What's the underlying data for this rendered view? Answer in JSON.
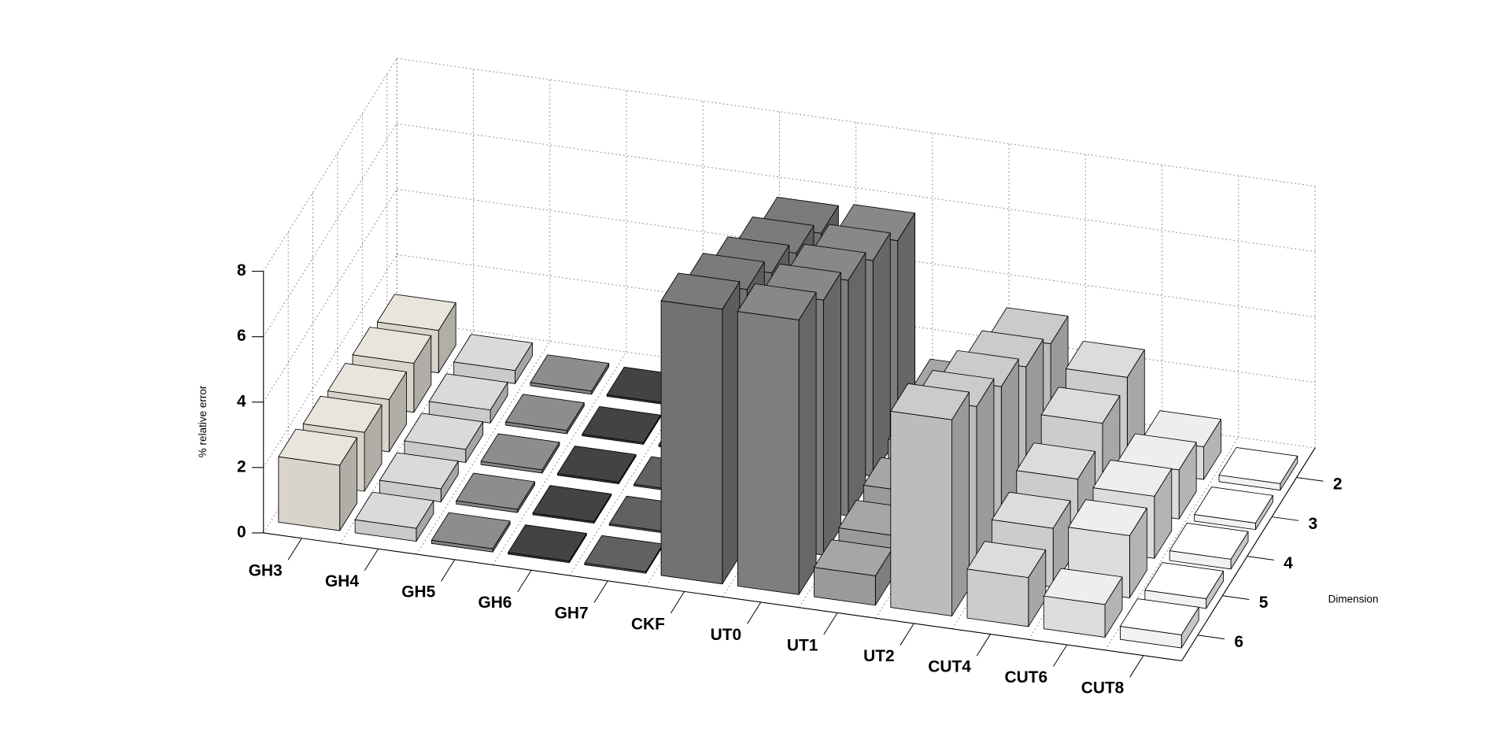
{
  "chart_data": {
    "type": "bar3d",
    "zlabel": "% relative error",
    "ylabel": "Dimension",
    "categories": [
      "GH3",
      "GH4",
      "GH5",
      "GH6",
      "GH7",
      "CKF",
      "UT0",
      "UT1",
      "UT2",
      "CUT4",
      "CUT6",
      "CUT8"
    ],
    "colors": [
      "#d8d4cc",
      "#cacaca",
      "#838383",
      "#3e3e3e",
      "#5a5a5a",
      "#727272",
      "#7e7e7e",
      "#9a9a9a",
      "#bcbcbc",
      "#cccccc",
      "#dcdcdc",
      "#f2f2f2"
    ],
    "series": [
      {
        "name": "2",
        "values": [
          1.3,
          0.4,
          0.1,
          0.05,
          0.05,
          5.9,
          6.0,
          1.6,
          3.5,
          2.8,
          1.0,
          0.2
        ]
      },
      {
        "name": "3",
        "values": [
          1.5,
          0.4,
          0.1,
          0.05,
          0.05,
          6.5,
          6.6,
          1.2,
          4.0,
          2.6,
          1.5,
          0.2
        ]
      },
      {
        "name": "4",
        "values": [
          1.6,
          0.4,
          0.1,
          0.05,
          0.05,
          7.1,
          7.2,
          1.0,
          4.6,
          2.1,
          1.9,
          0.3
        ]
      },
      {
        "name": "5",
        "values": [
          1.8,
          0.4,
          0.1,
          0.05,
          0.05,
          7.8,
          7.8,
          0.9,
          5.2,
          1.8,
          1.9,
          0.3
        ]
      },
      {
        "name": "6",
        "values": [
          2.0,
          0.4,
          0.1,
          0.05,
          0.05,
          8.4,
          8.4,
          0.9,
          6.0,
          1.5,
          1.0,
          0.4
        ]
      }
    ],
    "zlim": [
      0,
      8
    ],
    "zticks": [
      0,
      2,
      4,
      6,
      8
    ],
    "grid": true
  }
}
